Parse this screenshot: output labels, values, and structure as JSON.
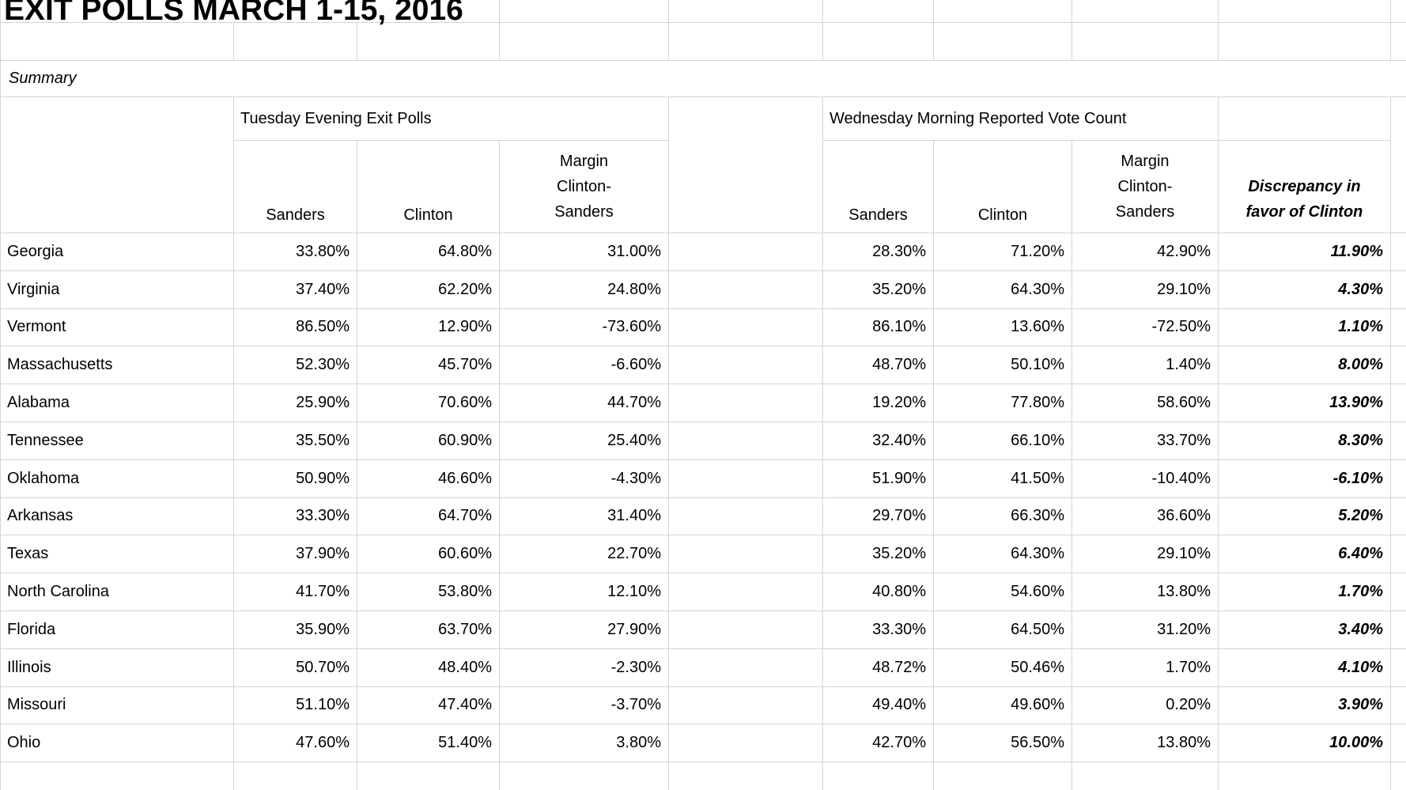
{
  "title": "EXIT POLLS MARCH 1-15, 2016",
  "section_label": "Summary",
  "colors": {
    "gridline": "#d4d4d4",
    "text": "#000000"
  },
  "table": {
    "group_headers": {
      "tuesday": "Tuesday Evening Exit Polls",
      "wednesday": "Wednesday Morning Reported Vote Count"
    },
    "sub_headers": {
      "tue_sanders": "Sanders",
      "tue_clinton": "Clinton",
      "tue_margin": "Margin Clinton- Sanders",
      "wed_sanders": "Sanders",
      "wed_clinton": "Clinton",
      "wed_margin": "Margin Clinton- Sanders",
      "discrepancy": "Discrepancy in favor of Clinton"
    },
    "rows": [
      {
        "state": "Georgia",
        "tue_sanders": "33.80%",
        "tue_clinton": "64.80%",
        "tue_margin": "31.00%",
        "wed_sanders": "28.30%",
        "wed_clinton": "71.20%",
        "wed_margin": "42.90%",
        "discrepancy": "11.90%"
      },
      {
        "state": "Virginia",
        "tue_sanders": "37.40%",
        "tue_clinton": "62.20%",
        "tue_margin": "24.80%",
        "wed_sanders": "35.20%",
        "wed_clinton": "64.30%",
        "wed_margin": "29.10%",
        "discrepancy": "4.30%"
      },
      {
        "state": "Vermont",
        "tue_sanders": "86.50%",
        "tue_clinton": "12.90%",
        "tue_margin": "-73.60%",
        "wed_sanders": "86.10%",
        "wed_clinton": "13.60%",
        "wed_margin": "-72.50%",
        "discrepancy": "1.10%"
      },
      {
        "state": "Massachusetts",
        "tue_sanders": "52.30%",
        "tue_clinton": "45.70%",
        "tue_margin": "-6.60%",
        "wed_sanders": "48.70%",
        "wed_clinton": "50.10%",
        "wed_margin": "1.40%",
        "discrepancy": "8.00%"
      },
      {
        "state": "Alabama",
        "tue_sanders": "25.90%",
        "tue_clinton": "70.60%",
        "tue_margin": "44.70%",
        "wed_sanders": "19.20%",
        "wed_clinton": "77.80%",
        "wed_margin": "58.60%",
        "discrepancy": "13.90%"
      },
      {
        "state": "Tennessee",
        "tue_sanders": "35.50%",
        "tue_clinton": "60.90%",
        "tue_margin": "25.40%",
        "wed_sanders": "32.40%",
        "wed_clinton": "66.10%",
        "wed_margin": "33.70%",
        "discrepancy": "8.30%"
      },
      {
        "state": "Oklahoma",
        "tue_sanders": "50.90%",
        "tue_clinton": "46.60%",
        "tue_margin": "-4.30%",
        "wed_sanders": "51.90%",
        "wed_clinton": "41.50%",
        "wed_margin": "-10.40%",
        "discrepancy": "-6.10%"
      },
      {
        "state": "Arkansas",
        "tue_sanders": "33.30%",
        "tue_clinton": "64.70%",
        "tue_margin": "31.40%",
        "wed_sanders": "29.70%",
        "wed_clinton": "66.30%",
        "wed_margin": "36.60%",
        "discrepancy": "5.20%"
      },
      {
        "state": "Texas",
        "tue_sanders": "37.90%",
        "tue_clinton": "60.60%",
        "tue_margin": "22.70%",
        "wed_sanders": "35.20%",
        "wed_clinton": "64.30%",
        "wed_margin": "29.10%",
        "discrepancy": "6.40%"
      },
      {
        "state": "North Carolina",
        "tue_sanders": "41.70%",
        "tue_clinton": "53.80%",
        "tue_margin": "12.10%",
        "wed_sanders": "40.80%",
        "wed_clinton": "54.60%",
        "wed_margin": "13.80%",
        "discrepancy": "1.70%"
      },
      {
        "state": "Florida",
        "tue_sanders": "35.90%",
        "tue_clinton": "63.70%",
        "tue_margin": "27.90%",
        "wed_sanders": "33.30%",
        "wed_clinton": "64.50%",
        "wed_margin": "31.20%",
        "discrepancy": "3.40%"
      },
      {
        "state": "Illinois",
        "tue_sanders": "50.70%",
        "tue_clinton": "48.40%",
        "tue_margin": "-2.30%",
        "wed_sanders": "48.72%",
        "wed_clinton": "50.46%",
        "wed_margin": "1.70%",
        "discrepancy": "4.10%"
      },
      {
        "state": "Missouri",
        "tue_sanders": "51.10%",
        "tue_clinton": "47.40%",
        "tue_margin": "-3.70%",
        "wed_sanders": "49.40%",
        "wed_clinton": "49.60%",
        "wed_margin": "0.20%",
        "discrepancy": "3.90%"
      },
      {
        "state": "Ohio",
        "tue_sanders": "47.60%",
        "tue_clinton": "51.40%",
        "tue_margin": "3.80%",
        "wed_sanders": "42.70%",
        "wed_clinton": "56.50%",
        "wed_margin": "13.80%",
        "discrepancy": "10.00%"
      }
    ]
  }
}
